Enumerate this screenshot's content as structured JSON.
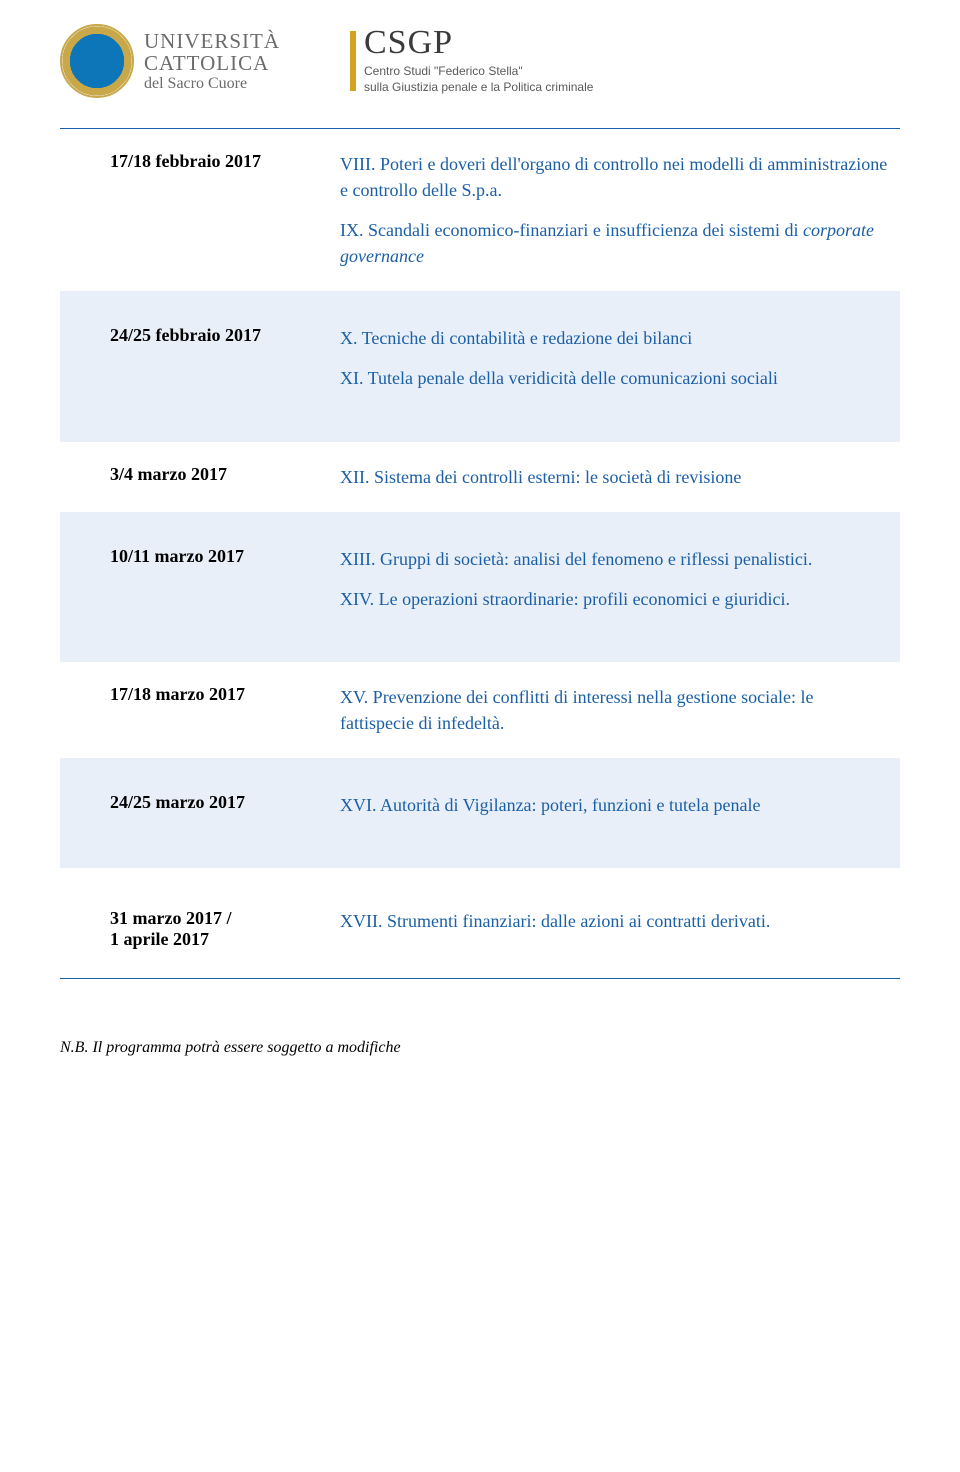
{
  "header": {
    "uni_name": "UNIVERSITÀ",
    "uni_sub1": "CATTOLICA",
    "uni_sub2": "del Sacro Cuore",
    "csgp_title": "CSGP",
    "csgp_sub1": "Centro Studi \"Federico Stella\"",
    "csgp_sub2": "sulla Giustizia penale e la Politica criminale"
  },
  "colors": {
    "accent_blue": "#1b5fa6",
    "row_bg": "#e9eff8",
    "gold": "#c9a849"
  },
  "rows": [
    {
      "date": "17/18 febbraio 2017",
      "shaded": false,
      "items": [
        "VIII. Poteri e doveri dell'organo di controllo nei modelli di amministrazione e controllo delle S.p.a.",
        "IX. Scandali economico-finanziari e insufficienza dei sistemi di <i>corporate governance</i>"
      ]
    },
    {
      "date": "24/25 febbraio 2017",
      "shaded": true,
      "tall": true,
      "items": [
        "X. Tecniche di contabilità e redazione dei bilanci",
        "XI. Tutela penale della veridicità delle comunicazioni sociali"
      ]
    },
    {
      "date": "3/4 marzo 2017",
      "shaded": false,
      "items": [
        "XII. Sistema dei controlli esterni: le società di revisione"
      ]
    },
    {
      "date": "10/11 marzo 2017",
      "shaded": true,
      "tall": true,
      "items": [
        "XIII. Gruppi di società: analisi del fenomeno e riflessi penalistici.",
        "XIV. Le operazioni straordinarie: profili economici e giuridici."
      ]
    },
    {
      "date": "17/18 marzo 2017",
      "shaded": false,
      "items": [
        "XV. Prevenzione dei conflitti di interessi nella gestione sociale: le fattispecie di infedeltà."
      ]
    },
    {
      "date": "24/25 marzo 2017",
      "shaded": true,
      "tall": true,
      "items": [
        "XVI. Autorità di Vigilanza: poteri, funzioni e tutela penale"
      ]
    },
    {
      "date": "31 marzo 2017 /\n1 aprile 2017",
      "shaded": false,
      "pad_top": true,
      "items": [
        "XVII. Strumenti finanziari: dalle azioni ai contratti derivati."
      ]
    }
  ],
  "footer_note": "N.B. Il programma potrà essere soggetto a modifiche"
}
